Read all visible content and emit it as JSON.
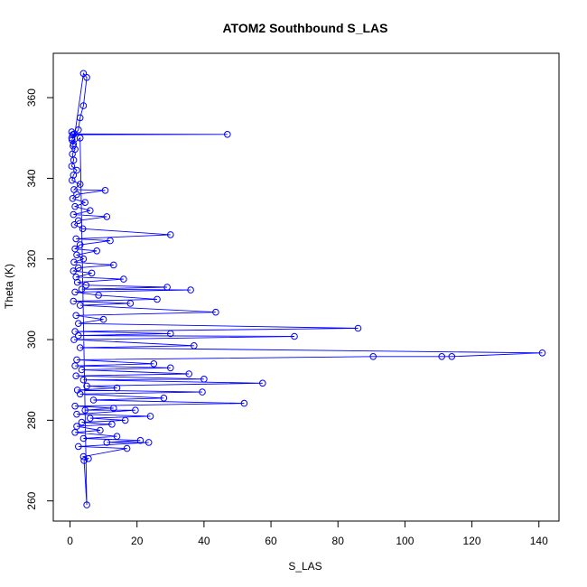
{
  "chart_data": {
    "type": "line",
    "title": "ATOM2 Southbound S_LAS",
    "xlabel": "S_LAS",
    "ylabel": "Theta (K)",
    "xlim": [
      -5,
      146
    ],
    "ylim": [
      255,
      371
    ],
    "x_ticks": [
      0,
      20,
      40,
      60,
      80,
      100,
      120,
      140
    ],
    "y_ticks": [
      260,
      280,
      300,
      320,
      340,
      360
    ],
    "grid": false,
    "legend": "none",
    "series": [
      {
        "color": "#0000ff",
        "marker": "open-circle",
        "points": [
          [
            0.5,
            351.5
          ],
          [
            0.8,
            350.8
          ],
          [
            47.0,
            350.9
          ],
          [
            1.2,
            351.0
          ],
          [
            0.6,
            349.5
          ],
          [
            0.9,
            348.0
          ],
          [
            1.5,
            347.2
          ],
          [
            0.7,
            346.0
          ],
          [
            1.1,
            344.5
          ],
          [
            0.5,
            343.0
          ],
          [
            2.0,
            342.0
          ],
          [
            1.0,
            340.8
          ],
          [
            0.6,
            339.5
          ],
          [
            3.0,
            338.5
          ],
          [
            1.2,
            337.2
          ],
          [
            10.5,
            337.0
          ],
          [
            2.0,
            336.0
          ],
          [
            0.8,
            335.0
          ],
          [
            4.5,
            334.0
          ],
          [
            1.5,
            333.0
          ],
          [
            6.0,
            332.0
          ],
          [
            1.0,
            331.0
          ],
          [
            11.0,
            330.5
          ],
          [
            2.5,
            329.5
          ],
          [
            1.3,
            328.5
          ],
          [
            3.8,
            327.5
          ],
          [
            30.0,
            326.0
          ],
          [
            1.8,
            325.0
          ],
          [
            12.0,
            324.5
          ],
          [
            3.0,
            323.5
          ],
          [
            1.5,
            322.5
          ],
          [
            8.0,
            322.0
          ],
          [
            2.0,
            321.0
          ],
          [
            4.0,
            320.0
          ],
          [
            1.2,
            319.2
          ],
          [
            13.0,
            318.5
          ],
          [
            2.5,
            317.8
          ],
          [
            1.0,
            317.0
          ],
          [
            6.5,
            316.5
          ],
          [
            1.8,
            315.5
          ],
          [
            16.0,
            315.0
          ],
          [
            2.2,
            314.2
          ],
          [
            4.8,
            313.5
          ],
          [
            29.0,
            313.0
          ],
          [
            3.5,
            312.5
          ],
          [
            36.0,
            312.3
          ],
          [
            1.5,
            311.8
          ],
          [
            8.5,
            311.0
          ],
          [
            26.0,
            310.0
          ],
          [
            1.0,
            309.5
          ],
          [
            18.0,
            309.0
          ],
          [
            3.0,
            308.5
          ],
          [
            43.5,
            306.8
          ],
          [
            1.8,
            306.0
          ],
          [
            10.0,
            305.0
          ],
          [
            2.5,
            304.0
          ],
          [
            86.0,
            302.8
          ],
          [
            1.5,
            302.0
          ],
          [
            30.0,
            301.5
          ],
          [
            2.5,
            301.0
          ],
          [
            67.0,
            300.8
          ],
          [
            1.2,
            300.0
          ],
          [
            37.0,
            298.5
          ],
          [
            3.0,
            298.0
          ],
          [
            141.0,
            296.7
          ],
          [
            114.0,
            295.8
          ],
          [
            111.0,
            295.8
          ],
          [
            90.5,
            295.8
          ],
          [
            2.0,
            295.0
          ],
          [
            25.0,
            294.0
          ],
          [
            1.5,
            293.5
          ],
          [
            30.0,
            293.0
          ],
          [
            3.5,
            292.5
          ],
          [
            35.5,
            291.5
          ],
          [
            1.8,
            291.0
          ],
          [
            40.0,
            290.2
          ],
          [
            4.0,
            290.0
          ],
          [
            57.5,
            289.2
          ],
          [
            5.0,
            288.5
          ],
          [
            14.0,
            288.0
          ],
          [
            2.2,
            287.5
          ],
          [
            39.5,
            287.0
          ],
          [
            3.0,
            286.5
          ],
          [
            28.0,
            285.5
          ],
          [
            7.0,
            285.0
          ],
          [
            52.0,
            284.2
          ],
          [
            1.5,
            283.5
          ],
          [
            13.0,
            283.0
          ],
          [
            4.5,
            282.5
          ],
          [
            19.5,
            282.5
          ],
          [
            2.0,
            281.5
          ],
          [
            24.0,
            281.0
          ],
          [
            6.0,
            280.5
          ],
          [
            16.5,
            280.0
          ],
          [
            3.5,
            279.5
          ],
          [
            12.5,
            279.0
          ],
          [
            2.0,
            278.5
          ],
          [
            9.0,
            277.5
          ],
          [
            1.5,
            277.0
          ],
          [
            14.0,
            276.0
          ],
          [
            4.0,
            275.5
          ],
          [
            21.0,
            275.0
          ],
          [
            11.0,
            274.5
          ],
          [
            23.5,
            274.5
          ],
          [
            2.5,
            273.5
          ],
          [
            17.0,
            273.0
          ],
          [
            4.0,
            271.0
          ],
          [
            5.5,
            270.5
          ],
          [
            4.2,
            270.0
          ],
          [
            5.0,
            259.0
          ],
          [
            3.0,
            350.0
          ],
          [
            1.0,
            348.5
          ],
          [
            4.0,
            366.0
          ],
          [
            5.0,
            365.0
          ],
          [
            4.0,
            358.0
          ],
          [
            3.0,
            355.0
          ],
          [
            2.5,
            352.0
          ],
          [
            0.5,
            350.0
          ]
        ]
      }
    ]
  }
}
